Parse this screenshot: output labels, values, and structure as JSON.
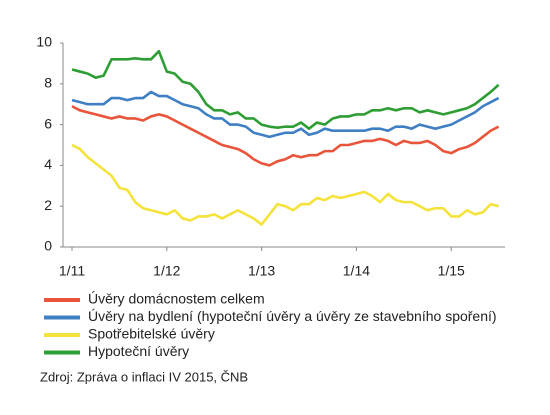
{
  "chart_data": {
    "type": "line",
    "categories": [
      "1/11",
      null,
      null,
      null,
      null,
      null,
      null,
      null,
      null,
      null,
      null,
      null,
      "1/12",
      null,
      null,
      null,
      null,
      null,
      null,
      null,
      null,
      null,
      null,
      null,
      "1/13",
      null,
      null,
      null,
      null,
      null,
      null,
      null,
      null,
      null,
      null,
      null,
      "1/14",
      null,
      null,
      null,
      null,
      null,
      null,
      null,
      null,
      null,
      null,
      null,
      "1/15",
      null,
      null,
      null,
      null,
      null,
      null
    ],
    "series": [
      {
        "name": "Úvěry domácnostem celkem",
        "color": "#e8553a",
        "values": [
          6.9,
          6.7,
          6.6,
          6.5,
          6.4,
          6.3,
          6.4,
          6.3,
          6.3,
          6.2,
          6.4,
          6.5,
          6.4,
          6.2,
          6.0,
          5.8,
          5.6,
          5.4,
          5.2,
          5.0,
          4.9,
          4.8,
          4.6,
          4.3,
          4.1,
          4.0,
          4.2,
          4.3,
          4.5,
          4.4,
          4.5,
          4.5,
          4.7,
          4.7,
          5.0,
          5.0,
          5.1,
          5.2,
          5.2,
          5.3,
          5.2,
          5.0,
          5.2,
          5.1,
          5.1,
          5.2,
          5.0,
          4.7,
          4.6,
          4.8,
          4.9,
          5.1,
          5.4,
          5.7,
          5.9
        ]
      },
      {
        "name": "Úvěry na bydlení (hypoteční úvěry a úvěry ze stavebního spoření)",
        "color": "#3f7fc4",
        "values": [
          7.2,
          7.1,
          7.0,
          7.0,
          7.0,
          7.3,
          7.3,
          7.2,
          7.3,
          7.3,
          7.6,
          7.4,
          7.4,
          7.2,
          7.0,
          6.9,
          6.8,
          6.5,
          6.3,
          6.3,
          6.0,
          6.0,
          5.9,
          5.6,
          5.5,
          5.4,
          5.5,
          5.6,
          5.6,
          5.8,
          5.5,
          5.6,
          5.8,
          5.7,
          5.7,
          5.7,
          5.7,
          5.7,
          5.8,
          5.8,
          5.7,
          5.9,
          5.9,
          5.8,
          6.0,
          5.9,
          5.8,
          5.9,
          6.0,
          6.2,
          6.4,
          6.6,
          6.9,
          7.1,
          7.3
        ]
      },
      {
        "name": "Spotřebitelské úvěry",
        "color": "#f5e23a",
        "values": [
          5.0,
          4.8,
          4.4,
          4.1,
          3.8,
          3.5,
          2.9,
          2.8,
          2.2,
          1.9,
          1.8,
          1.7,
          1.6,
          1.8,
          1.4,
          1.3,
          1.5,
          1.5,
          1.6,
          1.4,
          1.6,
          1.8,
          1.6,
          1.4,
          1.1,
          1.6,
          2.1,
          2.0,
          1.8,
          2.1,
          2.1,
          2.4,
          2.3,
          2.5,
          2.4,
          2.5,
          2.6,
          2.7,
          2.5,
          2.2,
          2.6,
          2.3,
          2.2,
          2.2,
          2.0,
          1.8,
          1.9,
          1.9,
          1.5,
          1.5,
          1.8,
          1.6,
          1.7,
          2.1,
          2.0
        ]
      },
      {
        "name": "Hypoteční úvěry",
        "color": "#2e9e34",
        "values": [
          8.7,
          8.6,
          8.5,
          8.3,
          8.4,
          9.2,
          9.2,
          9.2,
          9.25,
          9.2,
          9.2,
          9.6,
          8.6,
          8.5,
          8.1,
          8.0,
          7.6,
          7.0,
          6.7,
          6.7,
          6.5,
          6.6,
          6.3,
          6.3,
          6.0,
          5.9,
          5.85,
          5.9,
          5.9,
          6.1,
          5.8,
          6.1,
          6.0,
          6.3,
          6.4,
          6.4,
          6.5,
          6.5,
          6.7,
          6.7,
          6.8,
          6.7,
          6.8,
          6.8,
          6.6,
          6.7,
          6.6,
          6.5,
          6.6,
          6.7,
          6.8,
          7.0,
          7.3,
          7.6,
          7.95
        ]
      }
    ],
    "ylim": [
      0,
      10
    ],
    "yticks": [
      0,
      2,
      4,
      6,
      8,
      10
    ],
    "source": "Zdroj: Zpráva  o inflaci IV 2015, ČNB"
  }
}
